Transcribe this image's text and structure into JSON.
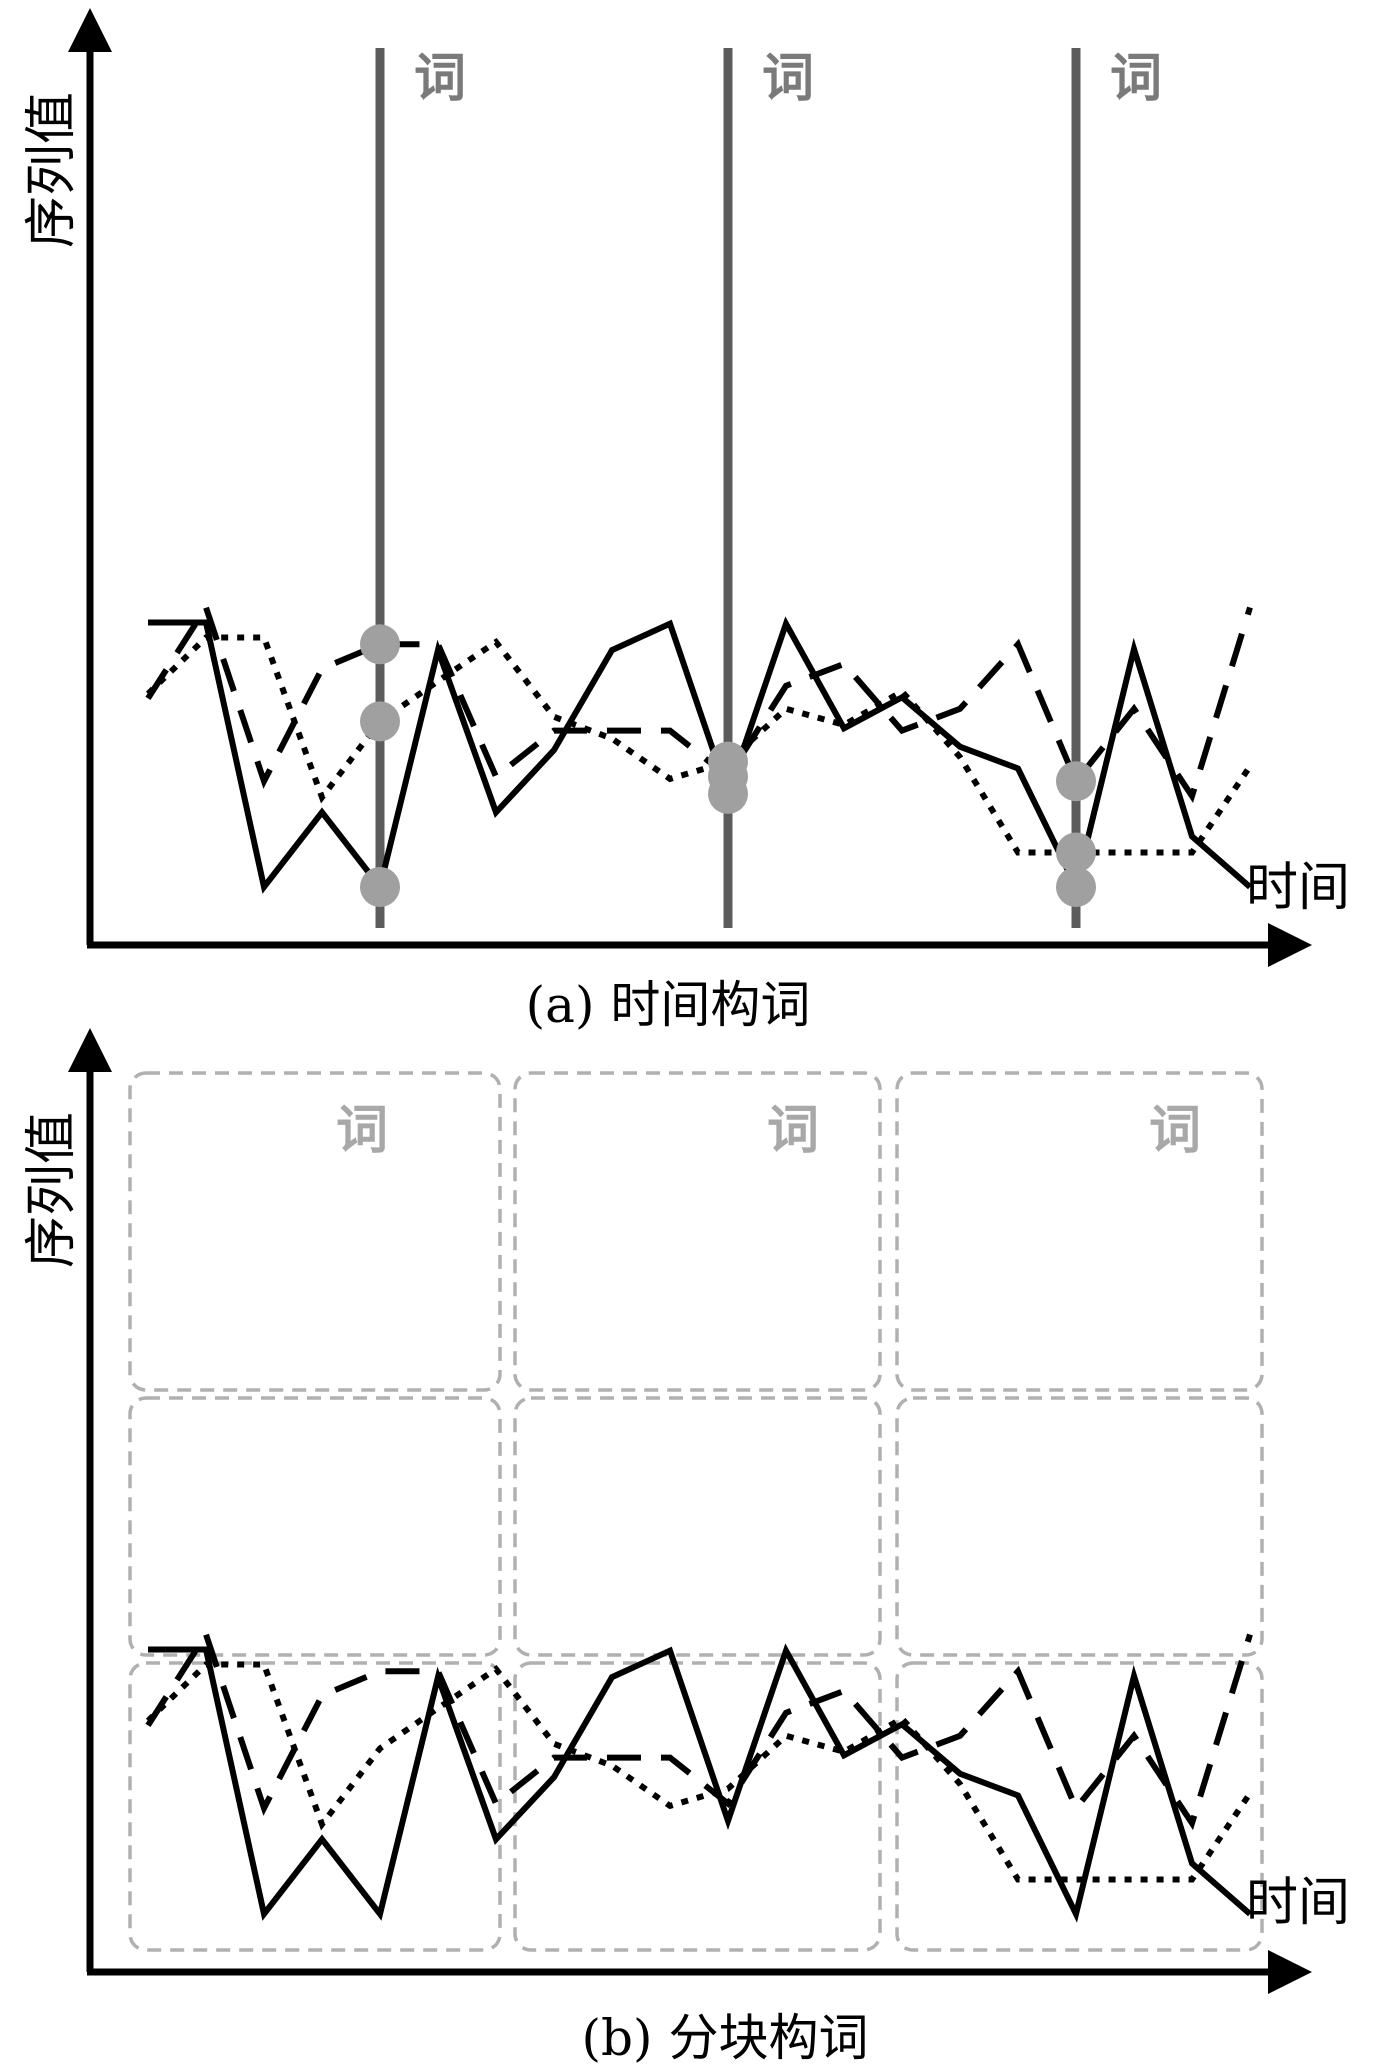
{
  "panel_a": {
    "ylabel": "序列值",
    "xlabel": "时间",
    "word_label": "词",
    "caption": "(a) 时间构词"
  },
  "panel_b": {
    "ylabel": "序列值",
    "xlabel": "时间",
    "word_label": "词",
    "caption": "(b) 分块构词"
  },
  "series": [
    {
      "style": "dotted",
      "color": "#000000",
      "values": [
        18.8,
        23.7,
        23.7,
        9.8,
        16.4,
        19.9,
        23.3,
        16.8,
        14.9,
        11.4,
        12.9,
        17.5,
        16.1,
        19.0,
        13.3,
        5.0,
        5.0,
        5.0,
        5.0,
        12.5
      ]
    },
    {
      "style": "dashed",
      "color": "#000000",
      "values": [
        18.4,
        26.3,
        11.2,
        21.0,
        23.1,
        23.1,
        11.6,
        15.6,
        15.6,
        15.6,
        11.6,
        19.5,
        21.4,
        15.6,
        17.5,
        23.1,
        11.2,
        17.5,
        9.9,
        26.3
      ]
    },
    {
      "style": "solid",
      "color": "#000000",
      "values": [
        25.0,
        25.0,
        2.0,
        8.5,
        2.0,
        22.6,
        8.5,
        13.9,
        22.6,
        24.9,
        10.1,
        24.9,
        15.8,
        18.5,
        14.2,
        12.3,
        2.0,
        22.7,
        6.4,
        2.0
      ]
    }
  ],
  "colors": {
    "axis": "#000000",
    "time_line": "#5c5c5c",
    "sample_point": "#a0a0a0",
    "block_border": "#b0b0b0"
  }
}
